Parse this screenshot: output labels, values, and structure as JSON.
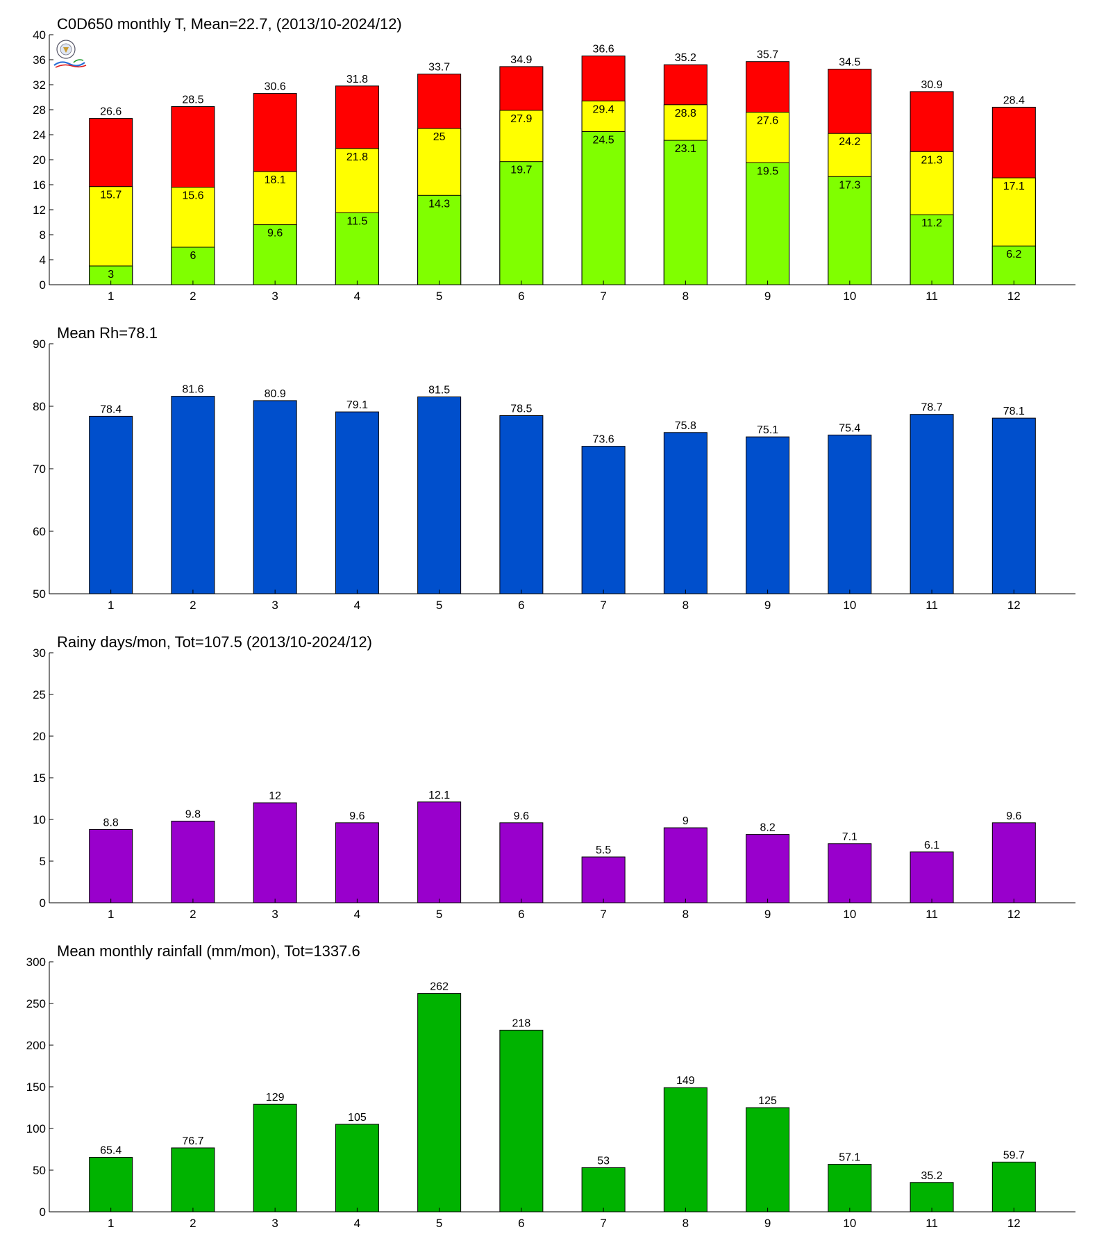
{
  "chart_data": [
    {
      "type": "bar",
      "stacked_overlay": true,
      "title": "C0D650 monthly T, Mean=22.7, (2013/10-2024/12)",
      "categories": [
        "1",
        "2",
        "3",
        "4",
        "5",
        "6",
        "7",
        "8",
        "9",
        "10",
        "11",
        "12"
      ],
      "series": [
        {
          "values": [
            26.6,
            28.5,
            30.6,
            31.8,
            33.7,
            34.9,
            36.6,
            35.2,
            35.7,
            34.5,
            30.9,
            28.4
          ],
          "color": "#ff0000",
          "label_position": "above"
        },
        {
          "values": [
            15.7,
            15.6,
            18.1,
            21.8,
            25,
            27.9,
            29.4,
            28.8,
            27.6,
            24.2,
            21.3,
            17.1
          ],
          "color": "#ffff00",
          "label_position": "inside"
        },
        {
          "values": [
            3,
            6,
            9.6,
            11.5,
            14.3,
            19.7,
            24.5,
            23.1,
            19.5,
            17.3,
            11.2,
            6.2
          ],
          "color": "#80ff00",
          "label_position": "inside"
        }
      ],
      "ylim": [
        0,
        40
      ],
      "yticks": [
        0,
        4,
        8,
        12,
        16,
        20,
        24,
        28,
        32,
        36,
        40
      ],
      "xlabel": "",
      "ylabel": "",
      "grid": false,
      "logo": true
    },
    {
      "type": "bar",
      "title": "Mean Rh=78.1",
      "categories": [
        "1",
        "2",
        "3",
        "4",
        "5",
        "6",
        "7",
        "8",
        "9",
        "10",
        "11",
        "12"
      ],
      "series": [
        {
          "values": [
            78.4,
            81.6,
            80.9,
            79.1,
            81.5,
            78.5,
            73.6,
            75.8,
            75.1,
            75.4,
            78.7,
            78.1
          ],
          "color": "#004fcc",
          "label_position": "above"
        }
      ],
      "ylim": [
        50,
        90
      ],
      "yticks": [
        50,
        60,
        70,
        80,
        90
      ],
      "xlabel": "",
      "ylabel": "",
      "grid": false
    },
    {
      "type": "bar",
      "title": "Rainy days/mon, Tot=107.5 (2013/10-2024/12)",
      "categories": [
        "1",
        "2",
        "3",
        "4",
        "5",
        "6",
        "7",
        "8",
        "9",
        "10",
        "11",
        "12"
      ],
      "series": [
        {
          "values": [
            8.8,
            9.8,
            12,
            9.6,
            12.1,
            9.6,
            5.5,
            9,
            8.2,
            7.1,
            6.1,
            9.6
          ],
          "color": "#9900cc",
          "label_position": "above"
        }
      ],
      "ylim": [
        0,
        30
      ],
      "yticks": [
        0,
        5,
        10,
        15,
        20,
        25,
        30
      ],
      "xlabel": "",
      "ylabel": "",
      "grid": false
    },
    {
      "type": "bar",
      "title": "Mean monthly rainfall (mm/mon), Tot=1337.6",
      "categories": [
        "1",
        "2",
        "3",
        "4",
        "5",
        "6",
        "7",
        "8",
        "9",
        "10",
        "11",
        "12"
      ],
      "series": [
        {
          "values": [
            65.4,
            76.7,
            129,
            105,
            262,
            218,
            53,
            149,
            125,
            57.1,
            35.2,
            59.7
          ],
          "color": "#00b300",
          "label_position": "above"
        }
      ],
      "ylim": [
        0,
        300
      ],
      "yticks": [
        0,
        50,
        100,
        150,
        200,
        250,
        300
      ],
      "xlabel": "",
      "ylabel": "",
      "grid": false
    }
  ]
}
